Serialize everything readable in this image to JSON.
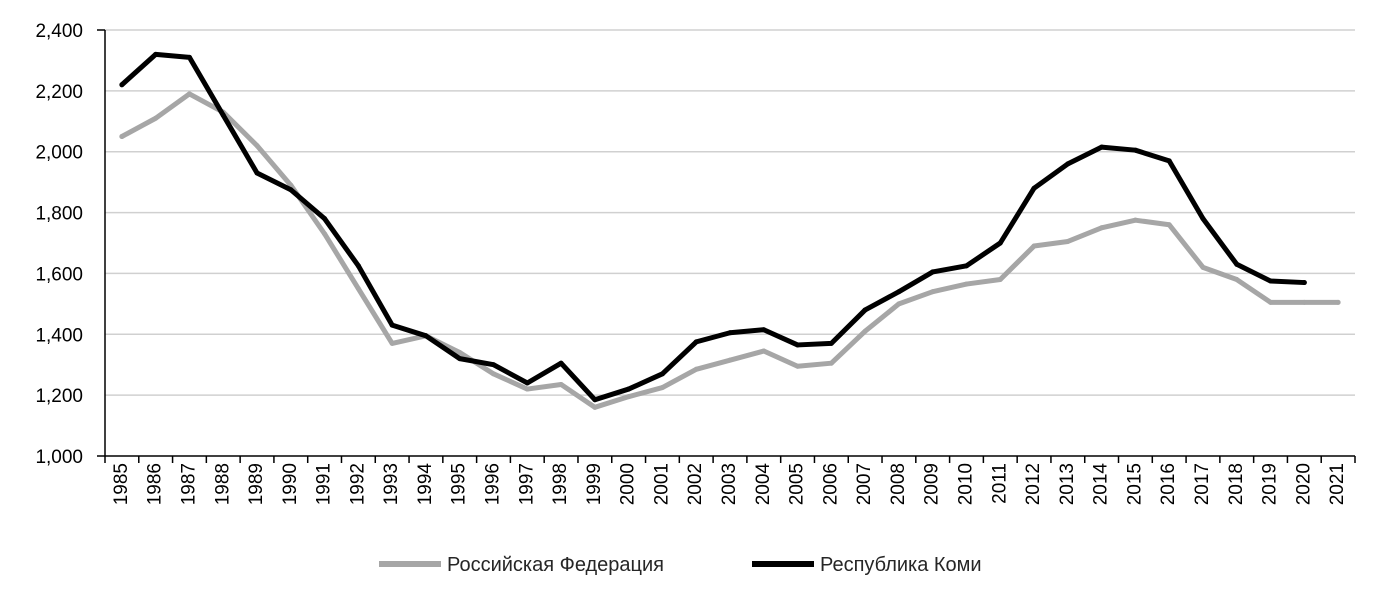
{
  "chart_data": {
    "type": "line",
    "title": "",
    "xlabel": "",
    "ylabel": "",
    "x": [
      "1985",
      "1986",
      "1987",
      "1988",
      "1989",
      "1990",
      "1991",
      "1992",
      "1993",
      "1994",
      "1995",
      "1996",
      "1997",
      "1998",
      "1999",
      "2000",
      "2001",
      "2002",
      "2003",
      "2004",
      "2005",
      "2006",
      "2007",
      "2008",
      "2009",
      "2010",
      "2011",
      "2012",
      "2013",
      "2014",
      "2015",
      "2016",
      "2017",
      "2018",
      "2019",
      "2020",
      "2021"
    ],
    "ylim": [
      1000,
      2400
    ],
    "yticks": [
      1000,
      1200,
      1400,
      1600,
      1800,
      2000,
      2200,
      2400
    ],
    "ytick_labels": [
      "1,000",
      "1,200",
      "1,400",
      "1,600",
      "1,800",
      "2,000",
      "2,200",
      "2,400"
    ],
    "grid": true,
    "legend_position": "bottom",
    "series": [
      {
        "name": "Российская Федерация",
        "color": "#a6a6a6",
        "values": [
          2050,
          2110,
          2190,
          2130,
          2020,
          1890,
          1730,
          1550,
          1370,
          1395,
          1340,
          1270,
          1220,
          1235,
          1160,
          1195,
          1225,
          1285,
          1315,
          1345,
          1295,
          1305,
          1410,
          1500,
          1540,
          1565,
          1580,
          1690,
          1705,
          1750,
          1775,
          1760,
          1620,
          1580,
          1505,
          1505,
          1505
        ]
      },
      {
        "name": "Республика Коми",
        "color": "#000000",
        "values": [
          2220,
          2320,
          2310,
          2120,
          1930,
          1875,
          1780,
          1625,
          1430,
          1395,
          1320,
          1300,
          1240,
          1305,
          1185,
          1220,
          1270,
          1375,
          1405,
          1415,
          1365,
          1370,
          1480,
          1540,
          1605,
          1625,
          1700,
          1880,
          1960,
          2015,
          2005,
          1970,
          1780,
          1630,
          1575,
          1570,
          null
        ]
      }
    ]
  }
}
